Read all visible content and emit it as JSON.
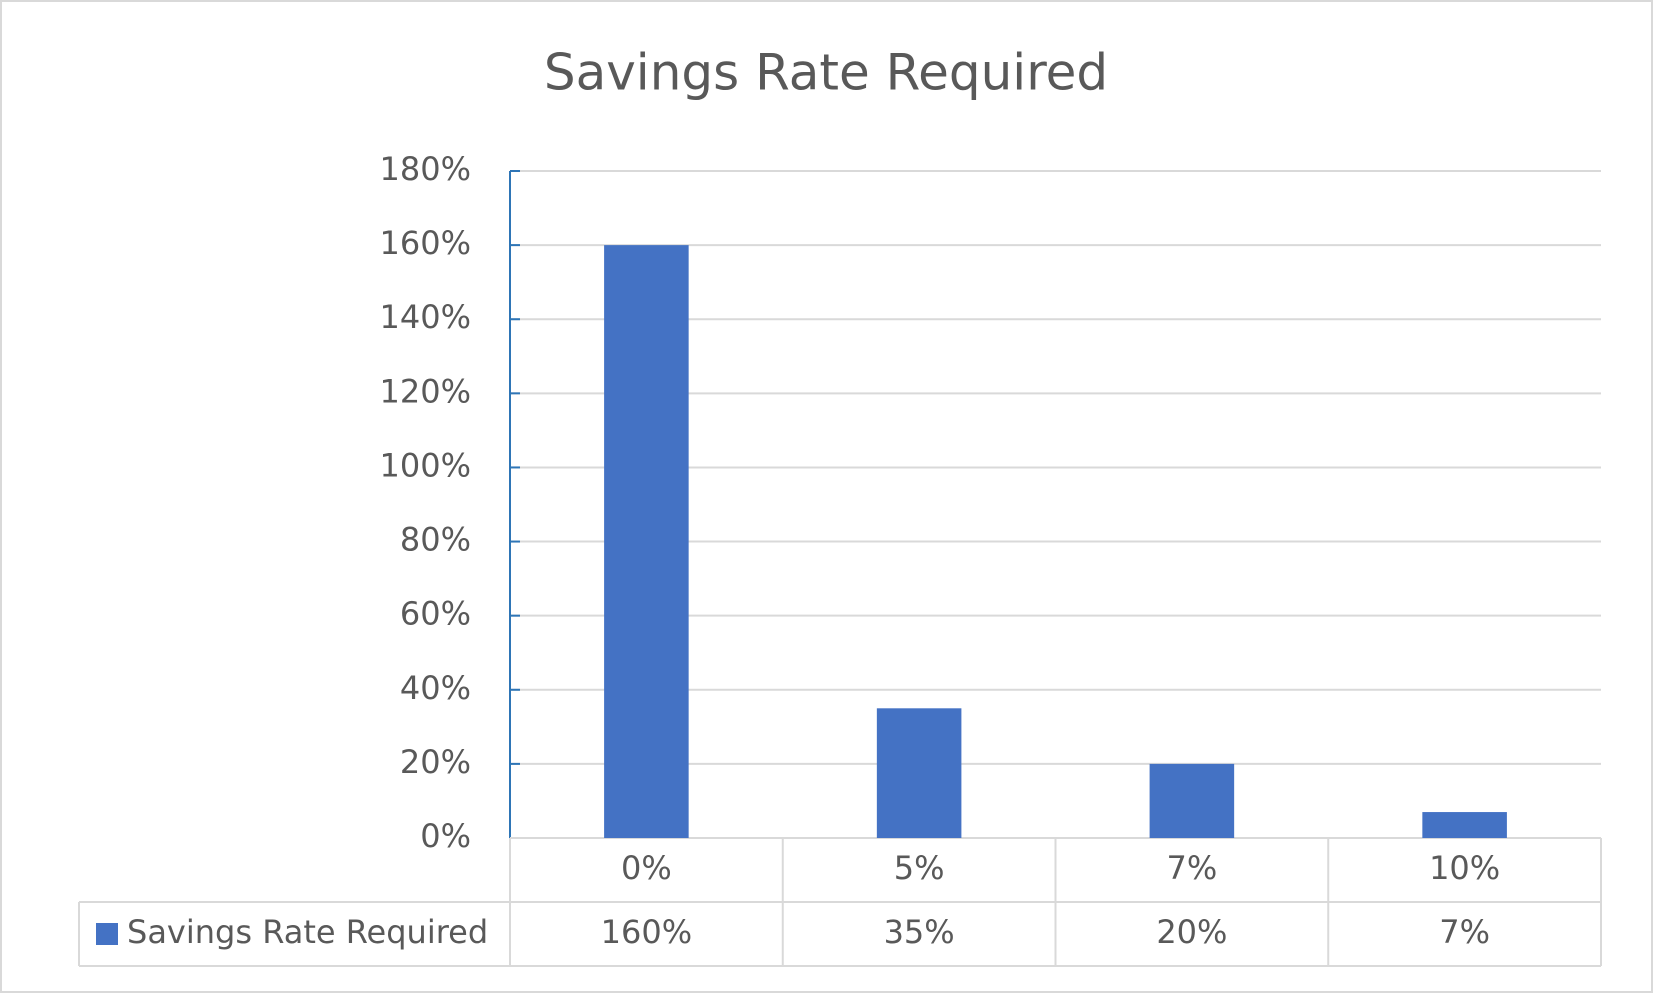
{
  "chart_data": {
    "type": "bar",
    "title": "Savings Rate Required",
    "categories": [
      "0%",
      "5%",
      "7%",
      "10%"
    ],
    "series": [
      {
        "name": "Savings Rate Required",
        "color": "#4472c4",
        "values": [
          160,
          35,
          20,
          7
        ],
        "value_labels": [
          "160%",
          "35%",
          "20%",
          "7%"
        ]
      }
    ],
    "ylim": [
      0,
      180
    ],
    "yticks": [
      {
        "value": 0,
        "label": "0%"
      },
      {
        "value": 20,
        "label": "20%"
      },
      {
        "value": 40,
        "label": "40%"
      },
      {
        "value": 60,
        "label": "60%"
      },
      {
        "value": 80,
        "label": "80%"
      },
      {
        "value": 100,
        "label": "100%"
      },
      {
        "value": 120,
        "label": "120%"
      },
      {
        "value": 140,
        "label": "140%"
      },
      {
        "value": 160,
        "label": "160%"
      },
      {
        "value": 180,
        "label": "180%"
      }
    ],
    "grid": true,
    "data_table": true
  }
}
